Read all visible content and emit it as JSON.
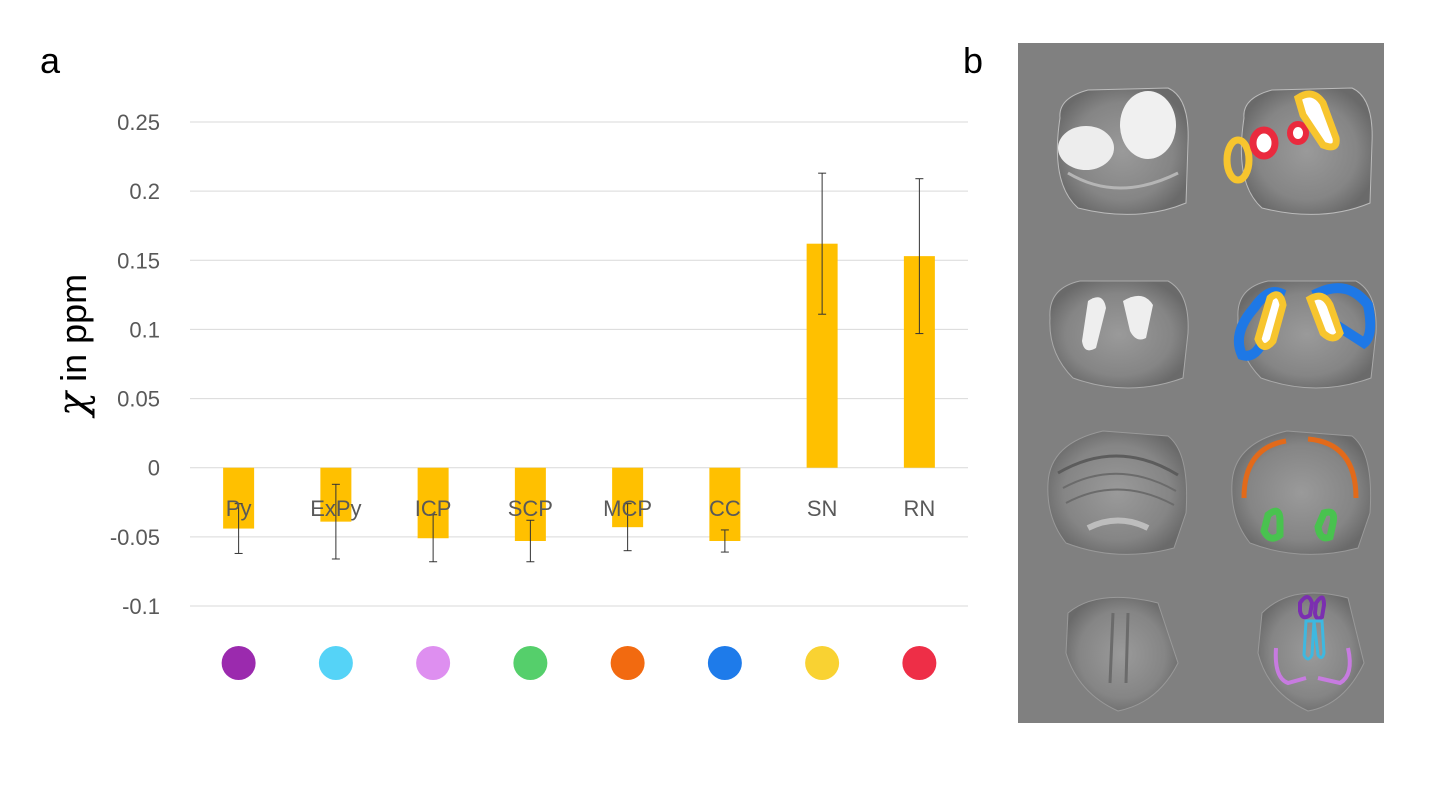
{
  "panels": {
    "a": "a",
    "b": "b"
  },
  "chart_data": {
    "type": "bar",
    "ylabel": "χ in ppm",
    "ylabel_symbol": "χ",
    "ylabel_text": " in ppm",
    "ylim": [
      -0.1,
      0.25
    ],
    "yticks": [
      0.25,
      0.2,
      0.15,
      0.1,
      0.05,
      0,
      -0.05,
      -0.1
    ],
    "ytick_labels": [
      "0.25",
      "0.2",
      "0.15",
      "0.1",
      "0.05",
      "0",
      "-0.05",
      "-0.1"
    ],
    "grid": true,
    "bar_color": "#FFC000",
    "categories": [
      "Py",
      "ExPy",
      "ICP",
      "SCP",
      "MCP",
      "CC",
      "SN",
      "RN"
    ],
    "values": [
      -0.044,
      -0.039,
      -0.051,
      -0.053,
      -0.043,
      -0.053,
      0.162,
      0.153
    ],
    "error": [
      0.018,
      0.027,
      0.017,
      0.015,
      0.017,
      0.008,
      0.051,
      0.056
    ],
    "marker_colors": [
      "#9B2AAE",
      "#55D3F7",
      "#DE8FF0",
      "#55CF6B",
      "#F26A10",
      "#1E7BEA",
      "#F9D232",
      "#EE2E47"
    ]
  },
  "mri": {
    "background": "#808080",
    "overlay_colors": {
      "row1": [
        "#F7C52E",
        "#EA2A3E"
      ],
      "row2": [
        "#1E78E6",
        "#F7C52E"
      ],
      "row3": [
        "#E26A1A",
        "#49C24F"
      ],
      "row4": [
        "#7B2FB0",
        "#3EB8E0",
        "#C77BE0"
      ]
    }
  }
}
